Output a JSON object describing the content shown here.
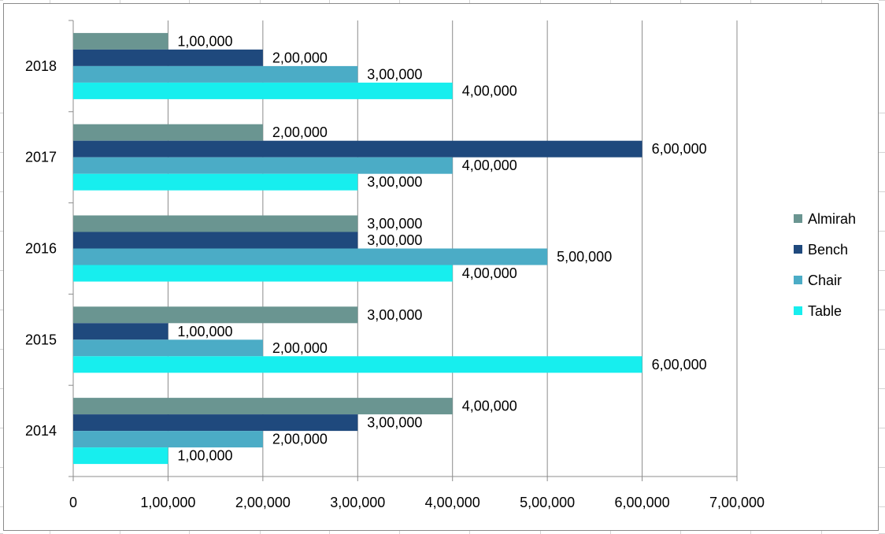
{
  "chart_data": {
    "type": "bar",
    "orientation": "horizontal",
    "categories": [
      "2014",
      "2015",
      "2016",
      "2017",
      "2018"
    ],
    "series": [
      {
        "name": "Almirah",
        "color": "#6A9591",
        "values": [
          400000,
          300000,
          300000,
          200000,
          100000
        ],
        "labels": [
          "4,00,000",
          "3,00,000",
          "3,00,000",
          "2,00,000",
          "1,00,000"
        ]
      },
      {
        "name": "Bench",
        "color": "#1F497D",
        "values": [
          300000,
          100000,
          300000,
          600000,
          200000
        ],
        "labels": [
          "3,00,000",
          "1,00,000",
          "3,00,000",
          "6,00,000",
          "2,00,000"
        ]
      },
      {
        "name": "Chair",
        "color": "#4BACC6",
        "values": [
          200000,
          200000,
          500000,
          400000,
          300000
        ],
        "labels": [
          "2,00,000",
          "2,00,000",
          "5,00,000",
          "4,00,000",
          "3,00,000"
        ]
      },
      {
        "name": "Table",
        "color": "#17EEEE",
        "values": [
          100000,
          600000,
          400000,
          300000,
          400000
        ],
        "labels": [
          "1,00,000",
          "6,00,000",
          "4,00,000",
          "3,00,000",
          "4,00,000"
        ]
      }
    ],
    "xlim": [
      0,
      700000
    ],
    "x_ticks": [
      "0",
      "1,00,000",
      "2,00,000",
      "3,00,000",
      "4,00,000",
      "5,00,000",
      "6,00,000",
      "7,00,000"
    ],
    "grid": "vertical major gridlines",
    "legend_position": "right",
    "title": "",
    "xlabel": "",
    "ylabel": ""
  }
}
